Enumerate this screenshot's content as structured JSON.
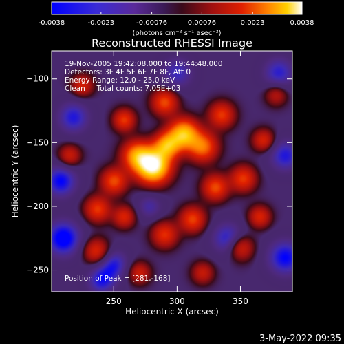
{
  "chart_data": {
    "type": "heatmap",
    "title": "Reconstructed RHESSI Image",
    "xlabel": "Heliocentric X (arcsec)",
    "ylabel": "Heliocentric Y (arcsec)",
    "xlim": [
      201,
      391
    ],
    "ylim": [
      -267,
      -78
    ],
    "x_ticks": [
      250,
      300,
      350
    ],
    "y_ticks": [
      -100,
      -150,
      -200,
      -250
    ],
    "colorbar": {
      "range": [
        -0.0038,
        0.0038
      ],
      "tick_values": [
        -0.0038,
        -0.0023,
        -0.00076,
        0.00076,
        0.0023,
        0.0038
      ],
      "tick_labels": [
        "-0.0038",
        "-0.0023",
        "-0.00076",
        "0.00076",
        "0.0023",
        "0.0038"
      ],
      "unit_label": "(photons cm⁻² s⁻¹ asec⁻²)"
    },
    "colors": {
      "negative": [
        "#0000ff",
        "#3a2bd6",
        "#5a2a9a",
        "#3a1a55"
      ],
      "positive": [
        "#3a0a1a",
        "#a01010",
        "#e02000",
        "#ff8000",
        "#ffd000",
        "#ffffff"
      ]
    },
    "sources": [
      {
        "x": 281,
        "y": -168,
        "amp": 1.0,
        "sigma": 9
      },
      {
        "x": 305,
        "y": -143,
        "amp": 0.72,
        "sigma": 8
      },
      {
        "x": 268,
        "y": -160,
        "amp": 0.55,
        "sigma": 8
      },
      {
        "x": 320,
        "y": -153,
        "amp": 0.5,
        "sigma": 8
      },
      {
        "x": 292,
        "y": -152,
        "amp": 0.6,
        "sigma": 7
      },
      {
        "x": 250,
        "y": -180,
        "amp": 0.42,
        "sigma": 7
      },
      {
        "x": 237,
        "y": -202,
        "amp": 0.38,
        "sigma": 7
      },
      {
        "x": 258,
        "y": -208,
        "amp": 0.32,
        "sigma": 6
      },
      {
        "x": 330,
        "y": -185,
        "amp": 0.42,
        "sigma": 7
      },
      {
        "x": 352,
        "y": -178,
        "amp": 0.38,
        "sigma": 7
      },
      {
        "x": 335,
        "y": -128,
        "amp": 0.38,
        "sigma": 7
      },
      {
        "x": 290,
        "y": -118,
        "amp": 0.42,
        "sigma": 7
      },
      {
        "x": 258,
        "y": -132,
        "amp": 0.38,
        "sigma": 6
      },
      {
        "x": 312,
        "y": -210,
        "amp": 0.4,
        "sigma": 7
      },
      {
        "x": 290,
        "y": -222,
        "amp": 0.36,
        "sigma": 7
      },
      {
        "x": 236,
        "y": -235,
        "amp": 0.34,
        "sigma": 7
      },
      {
        "x": 350,
        "y": -232,
        "amp": 0.34,
        "sigma": 7
      },
      {
        "x": 368,
        "y": -148,
        "amp": 0.32,
        "sigma": 6
      },
      {
        "x": 215,
        "y": -160,
        "amp": 0.28,
        "sigma": 6
      },
      {
        "x": 225,
        "y": -105,
        "amp": 0.3,
        "sigma": 6
      },
      {
        "x": 365,
        "y": -208,
        "amp": 0.32,
        "sigma": 6
      },
      {
        "x": 270,
        "y": -252,
        "amp": 0.28,
        "sigma": 6
      },
      {
        "x": 320,
        "y": -252,
        "amp": 0.26,
        "sigma": 6
      },
      {
        "x": 378,
        "y": -112,
        "amp": 0.24,
        "sigma": 6
      },
      {
        "x": 210,
        "y": -225,
        "amp": -0.4,
        "sigma": 10
      },
      {
        "x": 385,
        "y": -240,
        "amp": -0.35,
        "sigma": 10
      },
      {
        "x": 218,
        "y": -130,
        "amp": -0.3,
        "sigma": 9
      },
      {
        "x": 380,
        "y": -95,
        "amp": -0.28,
        "sigma": 9
      },
      {
        "x": 300,
        "y": -95,
        "amp": -0.25,
        "sigma": 9
      },
      {
        "x": 340,
        "y": -225,
        "amp": -0.3,
        "sigma": 9
      },
      {
        "x": 250,
        "y": -245,
        "amp": -0.28,
        "sigma": 8
      },
      {
        "x": 385,
        "y": -160,
        "amp": -0.3,
        "sigma": 9
      },
      {
        "x": 208,
        "y": -180,
        "amp": -0.35,
        "sigma": 9
      },
      {
        "x": 240,
        "y": -258,
        "amp": -0.3,
        "sigma": 8
      },
      {
        "x": 278,
        "y": -200,
        "amp": -0.2,
        "sigma": 7
      }
    ]
  },
  "annotations": {
    "time_range": "19-Nov-2005 19:42:08.000 to 19:44:48.000",
    "detectors": "Detectors: 3F 4F 5F 6F 7F 8F, Att 0",
    "energy": "Energy Range: 12.0 - 25.0 keV",
    "method": "Clean     Total counts: 7.05E+03",
    "peak": "Position of Peak = [281,-168]"
  },
  "footer": {
    "date": "3-May-2022 09:35"
  }
}
